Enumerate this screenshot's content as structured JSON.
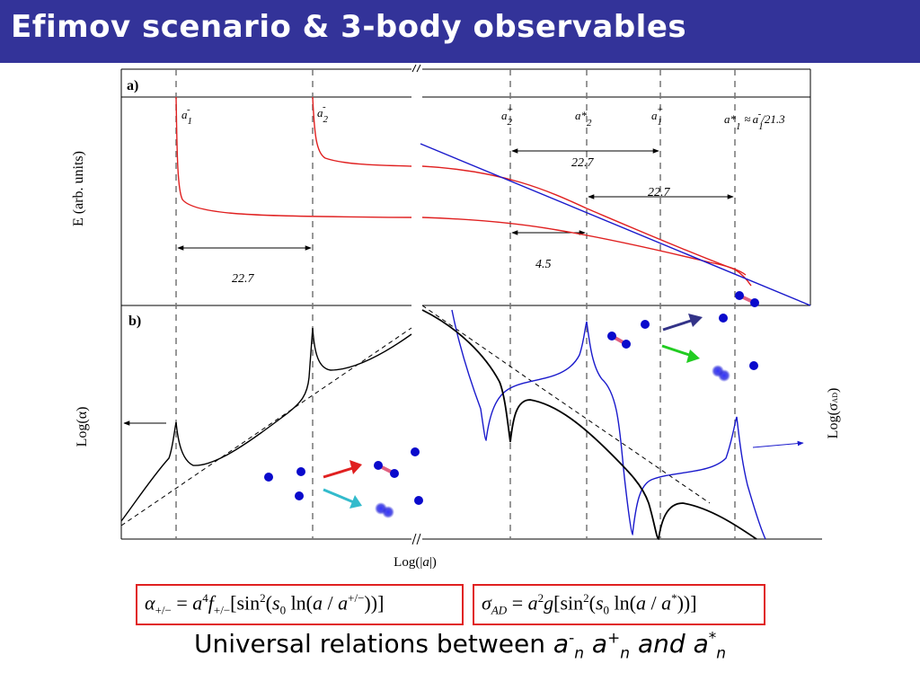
{
  "slide": {
    "title": "Efimov scenario & 3-body observables"
  },
  "panel_a": {
    "label": "a)",
    "ylabel": "E (arb. units)",
    "thresholds": {
      "a_minus_1": {
        "base": "a",
        "sup": "-",
        "sub": "1"
      },
      "a_minus_2": {
        "base": "a",
        "sup": "-",
        "sub": "2"
      },
      "a_plus_2": {
        "base": "a",
        "sup": "+",
        "sub": "2"
      },
      "a_star_2": {
        "base": "a*",
        "sup": "",
        "sub": "2"
      },
      "a_plus_1": {
        "base": "a",
        "sup": "+",
        "sub": "1"
      },
      "a_star_1_relation": {
        "base": "a*",
        "sub": "1",
        "approx": "≈",
        "base2": "a",
        "sup2": "-",
        "sub2": "1",
        "tail": "/21.3"
      }
    },
    "spacings": {
      "left": "22.7",
      "upper_right": "22.7",
      "lower_right": "22.7",
      "short": "4.5"
    }
  },
  "panel_b": {
    "label": "b)",
    "ylabel_left": "Log(α)",
    "ylabel_right": "Log(σ",
    "ylabel_right_sub": "AD",
    "ylabel_right_close": ")"
  },
  "xlabel": {
    "prefix": "Log(|",
    "var": "a",
    "suffix": "|)"
  },
  "formulas": {
    "alpha": {
      "lhs": "α",
      "lhs_sub": "+/−",
      "eq": " = ",
      "a": "a",
      "a_pow": "4",
      "f": "f",
      "f_sub": "+/−",
      "bracket_open": "[sin",
      "sin_pow": "2",
      "arg_open": "(",
      "s": "s",
      "s_sub": "0",
      "ln": " ln(",
      "a2": "a",
      "slash": " / ",
      "a3": "a",
      "a3_sup": "+/−",
      "close": "))]"
    },
    "sigma": {
      "lhs": "σ",
      "lhs_sub": "AD",
      "eq": " = ",
      "a": "a",
      "a_pow": "2",
      "g": "g",
      "bracket_open": "[sin",
      "sin_pow": "2",
      "arg_open": "(",
      "s": "s",
      "s_sub": "0",
      "ln": " ln(",
      "a2": "a",
      "slash": " / ",
      "a3": "a",
      "a3_sup": "*",
      "close": "))]"
    }
  },
  "caption": {
    "text": "Universal relations between ",
    "a1": "a",
    "a1_sup": "-",
    "a1_sub": "n",
    "a2": " a",
    "a2_sup": "+",
    "a2_sub": "n",
    "and": " and ",
    "a3": "a",
    "a3_sup": "*",
    "a3_sub": "n"
  },
  "colors": {
    "title_bg": "#333399",
    "efimov_curves": "#e02020",
    "dimer_line": "#1a1acc",
    "observable_blue": "#1a1acc",
    "observable_black": "#000000",
    "atom": "#0a0acc",
    "dimer_bond": "#e06080",
    "arrow_red": "#e02020",
    "arrow_cyan": "#33bbcc",
    "arrow_navy": "#333388",
    "arrow_green": "#22cc22",
    "formula_border": "#e02020"
  },
  "icons": [
    "atom-dot-icon",
    "dimer-icon",
    "trimer-blob-icon",
    "reaction-arrow-icon",
    "axis-break-icon"
  ]
}
